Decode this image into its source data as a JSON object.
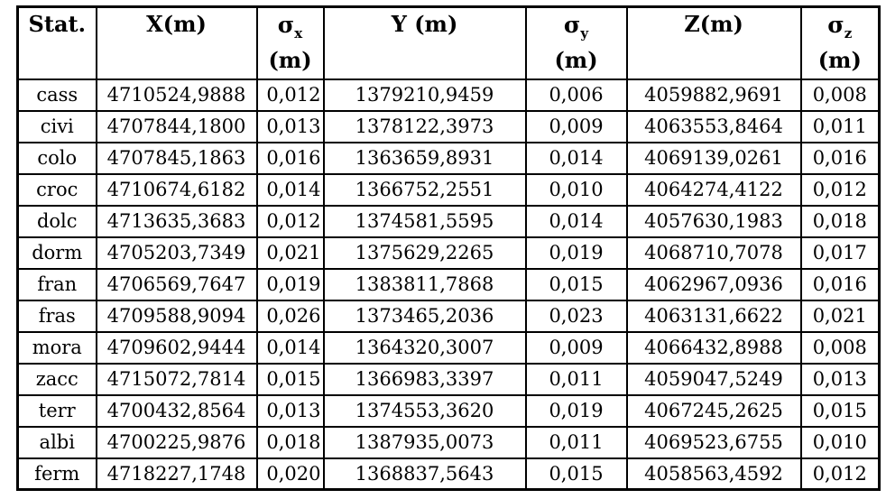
{
  "table": {
    "headers": {
      "stat": "Stat.",
      "x": "X(m)",
      "sigma_x": {
        "symbol": "σ",
        "sub": "x",
        "unit": "(m)"
      },
      "y": "Y (m)",
      "sigma_y": {
        "symbol": "σ",
        "sub": "y",
        "unit": "(m)"
      },
      "z": "Z(m)",
      "sigma_z": {
        "symbol": "σ",
        "sub": "z",
        "unit": "(m)"
      }
    },
    "rows": [
      [
        "cass",
        "4710524,9888",
        "0,012",
        "1379210,9459",
        "0,006",
        "4059882,9691",
        "0,008"
      ],
      [
        "civi",
        "4707844,1800",
        "0,013",
        "1378122,3973",
        "0,009",
        "4063553,8464",
        "0,011"
      ],
      [
        "colo",
        "4707845,1863",
        "0,016",
        "1363659,8931",
        "0,014",
        "4069139,0261",
        "0,016"
      ],
      [
        "croc",
        "4710674,6182",
        "0,014",
        "1366752,2551",
        "0,010",
        "4064274,4122",
        "0,012"
      ],
      [
        "dolc",
        "4713635,3683",
        "0,012",
        "1374581,5595",
        "0,014",
        "4057630,1983",
        "0,018"
      ],
      [
        "dorm",
        "4705203,7349",
        "0,021",
        "1375629,2265",
        "0,019",
        "4068710,7078",
        "0,017"
      ],
      [
        "fran",
        "4706569,7647",
        "0,019",
        "1383811,7868",
        "0,015",
        "4062967,0936",
        "0,016"
      ],
      [
        "fras",
        "4709588,9094",
        "0,026",
        "1373465,2036",
        "0,023",
        "4063131,6622",
        "0,021"
      ],
      [
        "mora",
        "4709602,9444",
        "0,014",
        "1364320,3007",
        "0,009",
        "4066432,8988",
        "0,008"
      ],
      [
        "zacc",
        "4715072,7814",
        "0,015",
        "1366983,3397",
        "0,011",
        "4059047,5249",
        "0,013"
      ],
      [
        "terr",
        "4700432,8564",
        "0,013",
        "1374553,3620",
        "0,019",
        "4067245,2625",
        "0,015"
      ],
      [
        "albi",
        "4700225,9876",
        "0,018",
        "1387935,0073",
        "0,011",
        "4069523,6755",
        "0,010"
      ],
      [
        "ferm",
        "4718227,1748",
        "0,020",
        "1368837,5643",
        "0,015",
        "4058563,4592",
        "0,012"
      ]
    ]
  }
}
